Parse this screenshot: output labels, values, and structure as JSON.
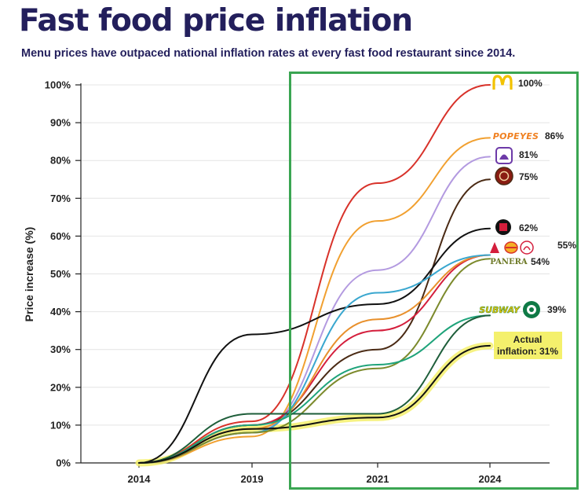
{
  "header": {
    "title": "Fast food price inflation",
    "subtitle": "Menu prices have outpaced national inflation rates at every fast food restaurant since 2014."
  },
  "chart_data": {
    "type": "line",
    "title": "Fast food price inflation",
    "subtitle": "Menu prices have outpaced national inflation rates at every fast food restaurant since 2014.",
    "xlabel": "",
    "ylabel": "Price increase (%)",
    "ylim": [
      0,
      100
    ],
    "categories": [
      "2014",
      "2019",
      "2021",
      "2024"
    ],
    "yticks": [
      "0%",
      "10%",
      "20%",
      "30%",
      "40%",
      "50%",
      "60%",
      "70%",
      "80%",
      "90%",
      "100%"
    ],
    "series": [
      {
        "name": "McDonald's",
        "color": "#d8322a",
        "values": [
          0,
          11,
          74,
          100
        ],
        "label": "100%"
      },
      {
        "name": "Popeyes",
        "color": "#f1a030",
        "values": [
          0,
          7,
          64,
          86
        ],
        "label": "86%"
      },
      {
        "name": "Taco Bell",
        "color": "#b39ae0",
        "values": [
          0,
          8,
          51,
          81
        ],
        "label": "81%"
      },
      {
        "name": "Chipotle",
        "color": "#4a2a14",
        "values": [
          0,
          10,
          30,
          75
        ],
        "label": "75%"
      },
      {
        "name": "Jack in the Box",
        "color": "#111111",
        "values": [
          0,
          34,
          42,
          62
        ],
        "label": "62%"
      },
      {
        "name": "Arby's",
        "color": "#d41e3c",
        "values": [
          0,
          10,
          35,
          55
        ],
        "label": "55%"
      },
      {
        "name": "Burger King",
        "color": "#e8902c",
        "values": [
          0,
          9,
          38,
          55
        ],
        "label": "55%"
      },
      {
        "name": "Wendy's",
        "color": "#3aa7cf",
        "values": [
          0,
          8,
          45,
          55
        ],
        "label": "55%"
      },
      {
        "name": "Panera",
        "color": "#7c8a2c",
        "values": [
          0,
          8,
          25,
          54
        ],
        "label": "54%"
      },
      {
        "name": "Subway",
        "color": "#1ea37a",
        "values": [
          0,
          10,
          26,
          39
        ],
        "label": "39%"
      },
      {
        "name": "Starbucks",
        "color": "#1e5e3a",
        "values": [
          0,
          13,
          13,
          39
        ],
        "label": "39%"
      },
      {
        "name": "Actual inflation",
        "color": "#111111",
        "highlight": "#f4f06c",
        "values": [
          0,
          9,
          12,
          31
        ],
        "label": "Actual inflation: 31%"
      }
    ],
    "annotations": {
      "highlight_box": "2021 to 2024",
      "inflation_label_line1": "Actual",
      "inflation_label_line2": "inflation: 31%",
      "shared_label": "55%"
    },
    "logos": {
      "popeyes": "POPEYES",
      "panera": "PANERA",
      "subway": "SUBWAY"
    }
  },
  "colors": {
    "title": "#231f5c",
    "highlight_box": "#3aa552",
    "inflation_band": "#f4f06c"
  }
}
